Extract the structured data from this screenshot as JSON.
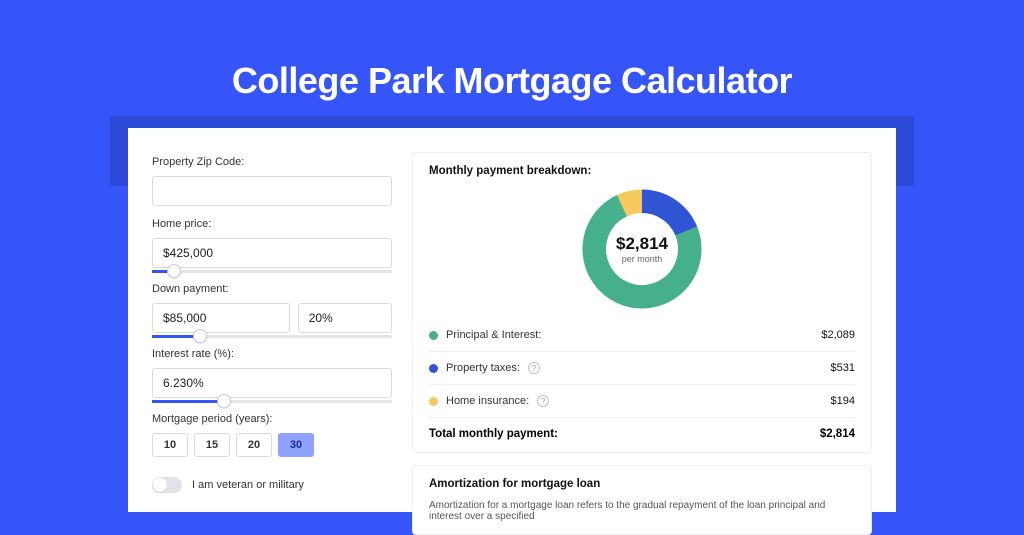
{
  "page": {
    "title": "College Park Mortgage Calculator",
    "bg_color": "#3655f9",
    "band_color": "#2e4ad8"
  },
  "form": {
    "zip_label": "Property Zip Code:",
    "zip_value": "",
    "price_label": "Home price:",
    "price_value": "$425,000",
    "price_slider": {
      "pct": 9
    },
    "down_label": "Down payment:",
    "down_value": "$85,000",
    "down_pct_value": "20%",
    "down_slider": {
      "pct": 20
    },
    "rate_label": "Interest rate (%):",
    "rate_value": "6.230%",
    "rate_slider": {
      "pct": 30
    },
    "period_label": "Mortgage period (years):",
    "periods": [
      "10",
      "15",
      "20",
      "30"
    ],
    "period_active_index": 3,
    "veteran_label": "I am veteran or military",
    "veteran_on": false
  },
  "breakdown": {
    "title": "Monthly payment breakdown:",
    "center_value": "$2,814",
    "center_sub": "per month",
    "chart": {
      "type": "donut",
      "slices": [
        {
          "id": "pi",
          "value": 2089,
          "color": "#46b08c"
        },
        {
          "id": "tax",
          "value": 531,
          "color": "#2f55d4"
        },
        {
          "id": "ins",
          "value": 194,
          "color": "#f6c95e"
        }
      ],
      "thickness": 19,
      "radius": 48,
      "bg": "#ffffff"
    },
    "items": [
      {
        "label": "Principal & Interest:",
        "value": "$2,089",
        "color": "#46b08c",
        "info": false
      },
      {
        "label": "Property taxes:",
        "value": "$531",
        "color": "#2f55d4",
        "info": true
      },
      {
        "label": "Home insurance:",
        "value": "$194",
        "color": "#f6c95e",
        "info": true
      }
    ],
    "total_label": "Total monthly payment:",
    "total_value": "$2,814"
  },
  "amortization": {
    "title": "Amortization for mortgage loan",
    "text": "Amortization for a mortgage loan refers to the gradual repayment of the loan principal and interest over a specified"
  }
}
